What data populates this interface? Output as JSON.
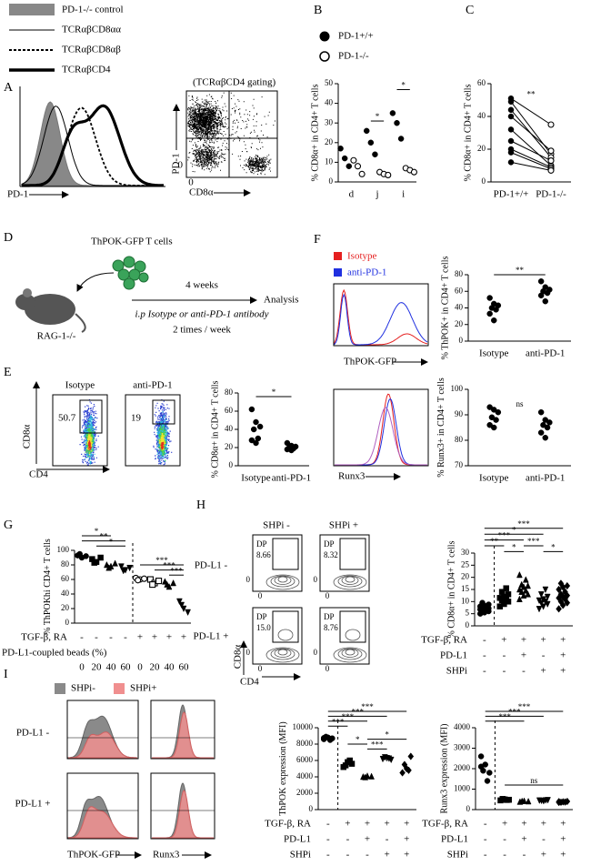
{
  "panel_labels": {
    "a": "A",
    "b": "B",
    "c": "C",
    "d": "D",
    "e": "E",
    "f": "F",
    "g": "G",
    "h": "H",
    "i": "I"
  },
  "panel_a": {
    "legend": [
      "PD-1-/- control",
      "TCRαβCD8αα",
      "TCRαβCD8αβ",
      "TCRαβCD4"
    ],
    "hist_xlabel": "PD-1",
    "gating": "(TCRαβCD4 gating)",
    "flow_ylabel": "PD-1",
    "flow_xlabel": "CD8α",
    "zero": "0"
  },
  "panel_b_legend": [
    "PD-1+/+",
    "PD-1-/-"
  ],
  "panel_d": {
    "cells": "ThPOK-GFP T cells",
    "duration": "4 weeks",
    "readout": "Analysis",
    "host": "RAG-1-/-",
    "treatment": "i.p Isotype or anti-PD-1 antibody",
    "schedule": "2 times / week"
  },
  "panel_e": {
    "columns": [
      "Isotype",
      "anti-PD-1"
    ],
    "gates": [
      "50.7",
      "19"
    ],
    "ylabel": "CD8α",
    "xlabel": "CD4"
  },
  "panel_f": {
    "legend": [
      "Isotype",
      "anti-PD-1"
    ],
    "hist_xlabels": [
      "ThPOK-GFP",
      "Runx3"
    ]
  },
  "panel_h": {
    "columns": [
      "SHPi -",
      "SHPi +"
    ],
    "rows": [
      "PD-L1 -",
      "PD-L1 +"
    ],
    "gate": "DP",
    "gates": [
      "8.66",
      "8.32",
      "15.0",
      "8.76"
    ],
    "ylabel": "CD8α",
    "xlabel": "CD4",
    "zero": "0"
  },
  "panel_i": {
    "legend": [
      "SHPi-",
      "SHPi+"
    ],
    "rows": [
      "PD-L1 -",
      "PD-L1 +"
    ],
    "xlabels": [
      "ThPOK-GFP",
      "Runx3"
    ]
  },
  "plots": [
    {
      "ylabel": "% CD8α+ in CD4+ T cells",
      "ylim": [
        0,
        50
      ],
      "yticks": [
        0,
        10,
        20,
        30,
        40,
        50
      ],
      "categories": [
        "d",
        "j",
        "i"
      ],
      "groups": [
        {
          "marker": "circle",
          "values": [
            17,
            12,
            8
          ]
        },
        {
          "marker": "open-circle",
          "values": [
            11,
            8,
            4
          ]
        },
        {
          "marker": "circle",
          "values": [
            26,
            20,
            14
          ]
        },
        {
          "marker": "open-circle",
          "values": [
            5,
            4,
            3.5
          ]
        },
        {
          "marker": "circle",
          "values": [
            35,
            30,
            22
          ]
        },
        {
          "marker": "open-circle",
          "values": [
            7,
            6,
            5
          ]
        }
      ],
      "annotations": [
        "*",
        "*"
      ]
    },
    {
      "ylabel": "% CD8α+ in CD4+ T cells",
      "ylim": [
        0,
        60
      ],
      "yticks": [
        0,
        20,
        40,
        60
      ],
      "categories": [
        "PD-1+/+",
        "PD-1-/-"
      ],
      "paired": true,
      "groups": [
        {
          "marker": "circle",
          "values": [
            51,
            49,
            44,
            40,
            32,
            25,
            20,
            18,
            12
          ]
        },
        {
          "marker": "open-circle",
          "values": [
            35,
            17,
            15,
            19,
            10,
            13,
            9,
            8,
            7
          ]
        }
      ],
      "annotations": [
        "**"
      ]
    },
    {
      "ylabel": "% CD8α+ in CD4+ T cells",
      "ylim": [
        0,
        80
      ],
      "yticks": [
        0,
        20,
        40,
        60,
        80
      ],
      "categories": [
        "Isotype",
        "anti-PD-1"
      ],
      "groups": [
        {
          "marker": "circle",
          "values": [
            62,
            48,
            43,
            40,
            30,
            28,
            25
          ]
        },
        {
          "marker": "circle",
          "values": [
            25,
            22,
            21,
            20,
            19,
            18,
            17
          ]
        }
      ],
      "annotations": [
        "*"
      ]
    },
    {
      "ylabel": "% ThPOK+ in CD4+ T cells",
      "ylim": [
        0,
        80
      ],
      "yticks": [
        0,
        20,
        40,
        60,
        80
      ],
      "categories": [
        "Isotype",
        "anti-PD-1"
      ],
      "groups": [
        {
          "marker": "circle",
          "values": [
            52,
            45,
            43,
            40,
            38,
            33,
            25
          ]
        },
        {
          "marker": "circle",
          "values": [
            72,
            65,
            62,
            60,
            58,
            55,
            48
          ]
        }
      ],
      "annotations": [
        "**"
      ]
    },
    {
      "ylabel": "% Runx3+ in CD4+ T cells",
      "ylim": [
        70,
        100
      ],
      "yticks": [
        70,
        80,
        90,
        100
      ],
      "categories": [
        "Isotype",
        "anti-PD-1"
      ],
      "groups": [
        {
          "marker": "circle",
          "values": [
            93,
            92,
            91,
            89,
            88,
            86,
            85
          ]
        },
        {
          "marker": "circle",
          "values": [
            91,
            88,
            87,
            86,
            85,
            83,
            81
          ]
        }
      ],
      "annotations": [
        "ns"
      ]
    },
    {
      "ylabel": "% ThPOKhi CD4+ T cells",
      "ylim": [
        0,
        100
      ],
      "yticks": [
        0,
        20,
        40,
        60,
        80,
        100
      ],
      "groups": [
        {
          "marker": "circle",
          "values": [
            93,
            90,
            92,
            95
          ]
        },
        {
          "marker": "square",
          "values": [
            88,
            84,
            90,
            83
          ]
        },
        {
          "marker": "triangle",
          "values": [
            80,
            78,
            82,
            76
          ]
        },
        {
          "marker": "down-triangle",
          "values": [
            78,
            73,
            76,
            72
          ]
        },
        {
          "marker": "open-circle",
          "values": [
            62,
            60,
            61,
            59
          ]
        },
        {
          "marker": "open-square",
          "values": [
            60,
            55,
            58,
            53
          ]
        },
        {
          "marker": "triangle",
          "values": [
            57,
            50,
            55,
            53
          ]
        },
        {
          "marker": "down-triangle",
          "values": [
            30,
            20,
            15,
            25
          ]
        }
      ],
      "rows": [
        {
          "label": "TGF-β, RA",
          "marks": [
            "-",
            "-",
            "-",
            "-",
            "+",
            "+",
            "+",
            "+"
          ]
        },
        {
          "label": "PD-L1-coupled beads (%)",
          "marks": [
            "0",
            "20",
            "40",
            "60",
            "0",
            "20",
            "40",
            "60"
          ]
        }
      ],
      "annotations": [
        "*",
        "**",
        "*",
        "***",
        "***",
        "***"
      ]
    },
    {
      "ylabel": "% CD8α+ in CD4+ T cells",
      "ylim": [
        0,
        30
      ],
      "yticks": [
        0,
        5,
        10,
        15,
        20,
        25,
        30
      ],
      "groups": [
        {
          "marker": "circle",
          "values": [
            5,
            5.5,
            6,
            6.2,
            6.5,
            6.8,
            7,
            7.2,
            7.5,
            7.8,
            8,
            8.3,
            8.8,
            9.5
          ]
        },
        {
          "marker": "square",
          "values": [
            8,
            9,
            10,
            10.5,
            11,
            11.5,
            12,
            13,
            14,
            15.5
          ]
        },
        {
          "marker": "triangle",
          "values": [
            11,
            12.5,
            13,
            14,
            14.5,
            15,
            16,
            16.5,
            17,
            19,
            21
          ]
        },
        {
          "marker": "down-triangle",
          "values": [
            7,
            8,
            9,
            9.5,
            10,
            10.5,
            11,
            12,
            13,
            15
          ]
        },
        {
          "marker": "diamond",
          "values": [
            7,
            8.5,
            9.5,
            10,
            11,
            11.5,
            12,
            12.5,
            13,
            14,
            15,
            16,
            16.5,
            17.5
          ]
        }
      ],
      "rows": [
        {
          "label": "TGF-β, RA",
          "marks": [
            "-",
            "+",
            "+",
            "+",
            "+"
          ]
        },
        {
          "label": "PD-L1",
          "marks": [
            "-",
            "-",
            "+",
            "-",
            "+"
          ]
        },
        {
          "label": "SHPi",
          "marks": [
            "-",
            "-",
            "-",
            "+",
            "+"
          ]
        }
      ],
      "annotations": [
        "***",
        "*",
        "***",
        "**",
        "*",
        "***",
        "*"
      ]
    },
    {
      "ylabel": "ThPOK expression (MFI)",
      "ylim": [
        0,
        10000
      ],
      "yticks": [
        0,
        2000,
        4000,
        6000,
        8000,
        10000
      ],
      "groups": [
        {
          "marker": "circle",
          "values": [
            8600,
            8800,
            8700,
            8900,
            8500,
            8750
          ]
        },
        {
          "marker": "square",
          "values": [
            5200,
            5800,
            5600,
            5400,
            6000
          ]
        },
        {
          "marker": "triangle",
          "values": [
            4000,
            4100,
            4050,
            3950
          ]
        },
        {
          "marker": "down-triangle",
          "values": [
            6200,
            6300,
            6100,
            6400,
            6250
          ]
        },
        {
          "marker": "diamond",
          "values": [
            4500,
            5000,
            6500,
            5500,
            4800
          ]
        }
      ],
      "rows": [
        {
          "label": "TGF-β, RA",
          "marks": [
            "-",
            "+",
            "+",
            "+",
            "+"
          ]
        },
        {
          "label": "PD-L1",
          "marks": [
            "-",
            "-",
            "+",
            "-",
            "+"
          ]
        },
        {
          "label": "SHPi",
          "marks": [
            "-",
            "-",
            "-",
            "+",
            "+"
          ]
        }
      ],
      "annotations": [
        "***",
        "***",
        "***",
        "***",
        "*",
        "***",
        "*"
      ]
    },
    {
      "ylabel": "Runx3 expression (MFI)",
      "ylim": [
        0,
        4000
      ],
      "yticks": [
        0,
        1000,
        2000,
        3000,
        4000
      ],
      "groups": [
        {
          "marker": "circle",
          "values": [
            2600,
            2200,
            1800,
            1900,
            1400,
            2100
          ]
        },
        {
          "marker": "square",
          "values": [
            450,
            500,
            480,
            520,
            470
          ]
        },
        {
          "marker": "triangle",
          "values": [
            380,
            420,
            400,
            410
          ]
        },
        {
          "marker": "down-triangle",
          "values": [
            450,
            420,
            470,
            440,
            460
          ]
        },
        {
          "marker": "diamond",
          "values": [
            350,
            380,
            400,
            360,
            370,
            390
          ]
        }
      ],
      "rows": [
        {
          "label": "TGF-β, RA",
          "marks": [
            "-",
            "+",
            "+",
            "+",
            "+"
          ]
        },
        {
          "label": "PD-L1",
          "marks": [
            "-",
            "-",
            "+",
            "-",
            "+"
          ]
        },
        {
          "label": "SHPi",
          "marks": [
            "-",
            "-",
            "-",
            "+",
            "+"
          ]
        }
      ],
      "annotations": [
        "***",
        "***",
        "***",
        "ns"
      ]
    }
  ]
}
